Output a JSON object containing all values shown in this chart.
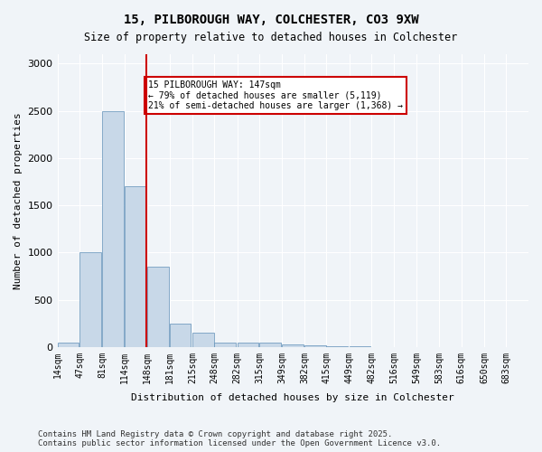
{
  "title1": "15, PILBOROUGH WAY, COLCHESTER, CO3 9XW",
  "title2": "Size of property relative to detached houses in Colchester",
  "xlabel": "Distribution of detached houses by size in Colchester",
  "ylabel": "Number of detached properties",
  "bins": [
    14,
    47,
    81,
    114,
    148,
    181,
    215,
    248,
    282,
    315,
    349,
    382,
    415,
    449,
    482,
    516,
    549,
    583,
    616,
    650,
    683
  ],
  "bin_labels": [
    "14sqm",
    "47sqm",
    "81sqm",
    "114sqm",
    "148sqm",
    "181sqm",
    "215sqm",
    "248sqm",
    "282sqm",
    "315sqm",
    "349sqm",
    "382sqm",
    "415sqm",
    "449sqm",
    "482sqm",
    "516sqm",
    "549sqm",
    "583sqm",
    "616sqm",
    "650sqm",
    "683sqm"
  ],
  "values": [
    50,
    1000,
    2500,
    1700,
    850,
    250,
    150,
    50,
    50,
    50,
    30,
    20,
    10,
    5,
    2,
    0,
    0,
    0,
    0,
    0
  ],
  "bar_color": "#c8d8e8",
  "bar_edge_color": "#6090b8",
  "property_size": 147,
  "property_bin_index": 3,
  "red_line_color": "#cc0000",
  "annotation_text": "15 PILBOROUGH WAY: 147sqm\n← 79% of detached houses are smaller (5,119)\n21% of semi-detached houses are larger (1,368) →",
  "annotation_box_color": "#ffeeee",
  "annotation_box_edge": "#cc0000",
  "ylim": [
    0,
    3100
  ],
  "yticks": [
    0,
    500,
    1000,
    1500,
    2000,
    2500,
    3000
  ],
  "footer": "Contains HM Land Registry data © Crown copyright and database right 2025.\nContains public sector information licensed under the Open Government Licence v3.0.",
  "background_color": "#f0f4f8",
  "plot_bg_color": "#f0f4f8"
}
